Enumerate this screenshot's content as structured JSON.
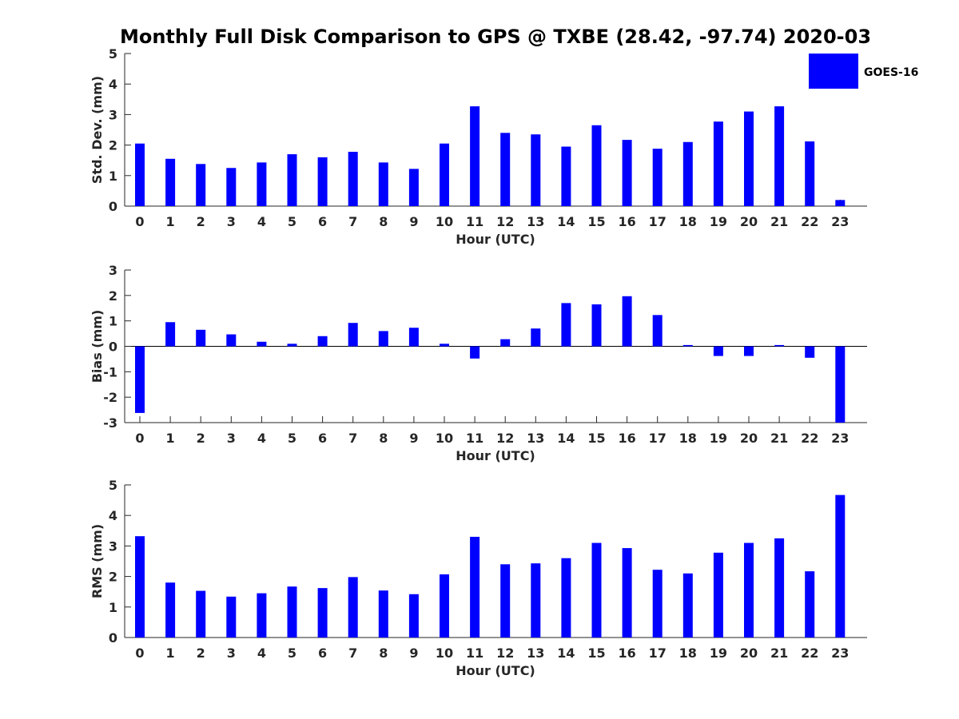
{
  "chart_data": {
    "type": "bar",
    "title": "Monthly Full Disk Comparison to GPS @ TXBE (28.42, -97.74) 2020-03",
    "legend": {
      "label": "GOES-16",
      "color": "#0000ff",
      "placement": "top-right"
    },
    "bar_color": "#0000ff",
    "categories": [
      "0",
      "1",
      "2",
      "3",
      "4",
      "5",
      "6",
      "7",
      "8",
      "9",
      "10",
      "11",
      "12",
      "13",
      "14",
      "15",
      "16",
      "17",
      "18",
      "19",
      "20",
      "21",
      "22",
      "23"
    ],
    "panels": [
      {
        "id": "std",
        "ylabel": "Std. Dev. (mm)",
        "xlabel": "Hour (UTC)",
        "ylim": [
          0,
          5
        ],
        "yticks": [
          0,
          1,
          2,
          3,
          4,
          5
        ],
        "values": [
          2.05,
          1.55,
          1.38,
          1.25,
          1.43,
          1.7,
          1.6,
          1.78,
          1.43,
          1.22,
          2.05,
          3.27,
          2.4,
          2.35,
          1.95,
          2.65,
          2.17,
          1.88,
          2.1,
          2.77,
          3.1,
          3.27,
          2.12,
          0.2
        ]
      },
      {
        "id": "bias",
        "ylabel": "Bias (mm)",
        "xlabel": "Hour (UTC)",
        "ylim": [
          -3,
          3
        ],
        "yticks": [
          -3,
          -2,
          -1,
          0,
          1,
          2,
          3
        ],
        "values": [
          -2.62,
          0.95,
          0.65,
          0.47,
          0.18,
          0.1,
          0.4,
          0.92,
          0.6,
          0.73,
          0.1,
          -0.48,
          0.28,
          0.7,
          1.7,
          1.65,
          1.97,
          1.23,
          0.05,
          -0.38,
          -0.38,
          0.05,
          -0.45,
          -3.0
        ]
      },
      {
        "id": "rms",
        "ylabel": "RMS (mm)",
        "xlabel": "Hour (UTC)",
        "ylim": [
          0,
          5
        ],
        "yticks": [
          0,
          1,
          2,
          3,
          4,
          5
        ],
        "values": [
          3.32,
          1.8,
          1.53,
          1.34,
          1.45,
          1.67,
          1.62,
          1.98,
          1.54,
          1.42,
          2.07,
          3.3,
          2.4,
          2.43,
          2.6,
          3.1,
          2.93,
          2.22,
          2.1,
          2.78,
          3.1,
          3.25,
          2.17,
          4.67
        ]
      }
    ]
  }
}
